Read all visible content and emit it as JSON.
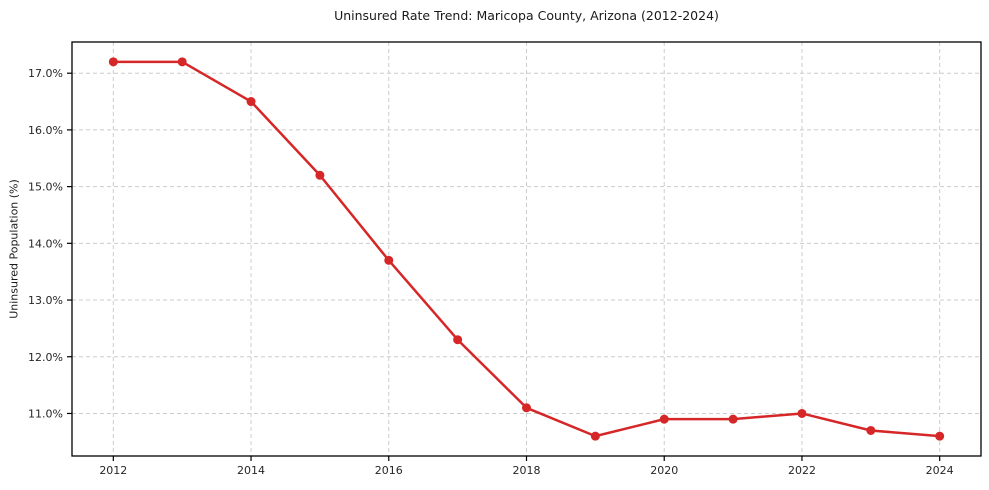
{
  "chart_data": {
    "type": "line",
    "title": "Uninsured Rate Trend: Maricopa County, Arizona (2012-2024)",
    "xlabel": "",
    "ylabel": "Uninsured Population (%)",
    "series_name": "Uninsured Rate",
    "x": [
      2012,
      2013,
      2014,
      2015,
      2016,
      2017,
      2018,
      2019,
      2020,
      2021,
      2022,
      2023,
      2024
    ],
    "values": [
      17.2,
      17.2,
      16.5,
      15.2,
      13.7,
      12.3,
      11.1,
      10.6,
      10.9,
      10.9,
      11.0,
      10.7,
      10.6
    ],
    "xticks": [
      2012,
      2014,
      2016,
      2018,
      2020,
      2022,
      2024
    ],
    "xtick_labels": [
      "2012",
      "2014",
      "2016",
      "2018",
      "2020",
      "2022",
      "2024"
    ],
    "yticks": [
      11,
      12,
      13,
      14,
      15,
      16,
      17
    ],
    "ytick_labels": [
      "11.0%",
      "12.0%",
      "13.0%",
      "14.0%",
      "15.0%",
      "16.0%",
      "17.0%"
    ],
    "xlim": [
      2011.4,
      2024.6
    ],
    "ylim": [
      10.25,
      17.55
    ],
    "grid": true,
    "grid_style": "dashed",
    "legend": false,
    "marker": "circle",
    "line_color": "#d62728",
    "marker_color": "#d62728",
    "grid_color": "#cccccc",
    "spine_color": "#000000",
    "text_color": "#262626"
  }
}
